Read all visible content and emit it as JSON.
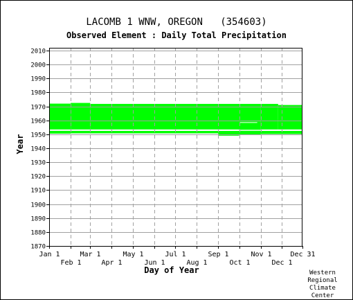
{
  "title": "LACOMB 1 WNW, OREGON   (354603)",
  "subtitle": "Observed Element : Daily Total Precipitation",
  "credit": [
    "Western",
    "Regional",
    "Climate",
    "Center"
  ],
  "chart_data": {
    "type": "heatmap",
    "title": "LACOMB 1 WNW, OREGON   (354603)",
    "subtitle": "Observed Element : Daily Total Precipitation",
    "xlabel": "Day of Year",
    "ylabel": "Year",
    "xlim": [
      1,
      365
    ],
    "ylim": [
      1870,
      2012
    ],
    "grid": true,
    "colors": {
      "data": "#00ff00",
      "grid": "#a0a0a0",
      "axis": "#000000"
    },
    "x_ticks_upper": [
      {
        "label": "Jan 1",
        "day": 1
      },
      {
        "label": "Mar 1",
        "day": 60
      },
      {
        "label": "May 1",
        "day": 121
      },
      {
        "label": "Jul 1",
        "day": 182
      },
      {
        "label": "Sep 1",
        "day": 244
      },
      {
        "label": "Nov 1",
        "day": 305
      },
      {
        "label": "Dec 31",
        "day": 365
      }
    ],
    "x_ticks_lower": [
      {
        "label": "Feb 1",
        "day": 32
      },
      {
        "label": "Apr 1",
        "day": 91
      },
      {
        "label": "Jun 1",
        "day": 152
      },
      {
        "label": "Aug 1",
        "day": 213
      },
      {
        "label": "Oct 1",
        "day": 274
      },
      {
        "label": "Dec 1",
        "day": 335
      }
    ],
    "y_ticks": [
      1870,
      1880,
      1890,
      1900,
      1910,
      1920,
      1930,
      1940,
      1950,
      1960,
      1970,
      1980,
      1990,
      2000,
      2010
    ],
    "observed_periods": [
      {
        "start_day": 1,
        "end_day": 32,
        "start_year": 1953.5,
        "end_year": 1972
      },
      {
        "start_day": 32,
        "end_day": 60,
        "start_year": 1953.5,
        "end_year": 1972.5
      },
      {
        "start_day": 60,
        "end_day": 305,
        "start_year": 1953.5,
        "end_year": 1971.8
      },
      {
        "start_day": 305,
        "end_day": 330,
        "start_year": 1953.5,
        "end_year": 1971.8
      },
      {
        "start_day": 330,
        "end_day": 365,
        "start_year": 1953.5,
        "end_year": 1971
      },
      {
        "start_day": 1,
        "end_day": 365,
        "start_year": 1950.7,
        "end_year": 1952.5
      },
      {
        "start_day": 1,
        "end_day": 32,
        "start_year": 1950.5,
        "end_year": 1951
      },
      {
        "start_day": 244,
        "end_day": 274,
        "start_year": 1949,
        "end_year": 1950.7
      },
      {
        "start_day": 274,
        "end_day": 305,
        "start_year": 1950,
        "end_year": 1953.5
      },
      {
        "start_day": 305,
        "end_day": 365,
        "start_year": 1950.2,
        "end_year": 1951
      }
    ],
    "gaps": [
      {
        "start_day": 60,
        "end_day": 365,
        "start_year": 1952.5,
        "end_year": 1953.2
      },
      {
        "start_day": 275,
        "end_day": 300,
        "start_year": 1958.2,
        "end_year": 1958.7
      }
    ]
  }
}
